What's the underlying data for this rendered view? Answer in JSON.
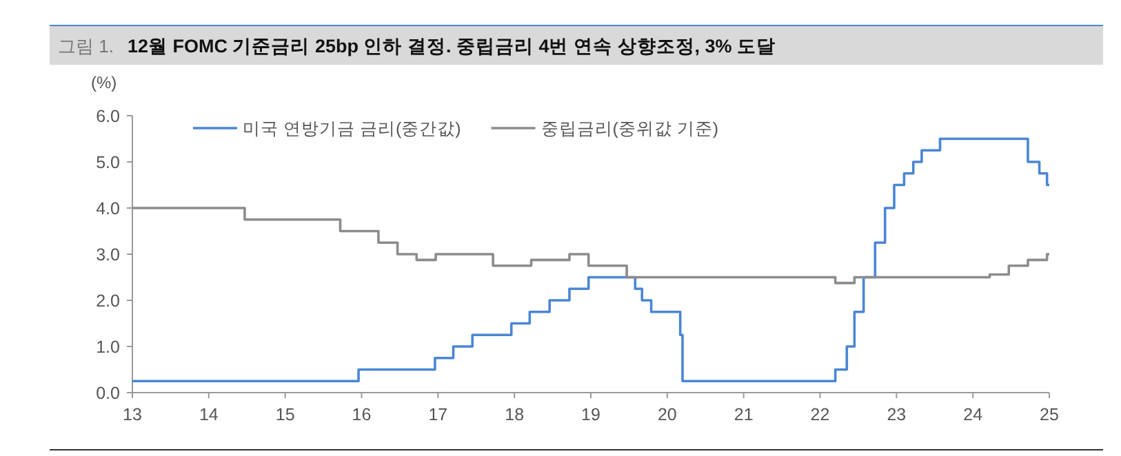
{
  "chart_data": {
    "type": "step",
    "title": "12월 FOMC 기준금리 25bp 인하 결정. 중립금리 4번 연속 상향조정, 3% 도달",
    "annotations": [
      "그림 1."
    ],
    "ylabel": "(%)",
    "series": [
      {
        "name": "미국 연방기금 금리(중간값)",
        "color": "#4a86d4",
        "x": [
          13.0,
          15.96,
          16.96,
          17.2,
          17.45,
          17.96,
          18.2,
          18.46,
          18.72,
          18.97,
          19.58,
          19.67,
          19.79,
          20.17,
          20.2,
          22.2,
          22.35,
          22.45,
          22.57,
          22.72,
          22.85,
          22.97,
          23.1,
          23.22,
          23.33,
          23.57,
          24.72,
          24.87,
          24.97,
          25.0
        ],
        "values": [
          0.25,
          0.5,
          0.75,
          1.0,
          1.25,
          1.5,
          1.75,
          2.0,
          2.25,
          2.5,
          2.25,
          2.0,
          1.75,
          1.25,
          0.25,
          0.5,
          1.0,
          1.75,
          2.5,
          3.25,
          4.0,
          4.5,
          4.75,
          5.0,
          5.25,
          5.5,
          5.0,
          4.75,
          4.5,
          4.5
        ]
      },
      {
        "name": "중립금리(중위값 기준)",
        "color": "#8c8c8c",
        "x": [
          13.0,
          14.47,
          15.72,
          16.22,
          16.47,
          16.72,
          16.97,
          17.72,
          18.22,
          18.72,
          18.97,
          19.47,
          22.2,
          22.45,
          24.22,
          24.47,
          24.72,
          24.97,
          25.0
        ],
        "values": [
          4.0,
          3.75,
          3.5,
          3.25,
          3.0,
          2.875,
          3.0,
          2.75,
          2.875,
          3.0,
          2.75,
          2.5,
          2.375,
          2.5,
          2.56,
          2.75,
          2.875,
          3.0,
          3.0
        ]
      }
    ],
    "xlim": [
      13,
      25
    ],
    "xticks": [
      13,
      14,
      15,
      16,
      17,
      18,
      19,
      20,
      21,
      22,
      23,
      24,
      25
    ],
    "ylim": [
      0,
      6
    ],
    "yticks": [
      {
        "value": 0,
        "label": "0.0"
      },
      {
        "value": 1,
        "label": "1.0"
      },
      {
        "value": 2,
        "label": "2.0"
      },
      {
        "value": 3,
        "label": "3.0"
      },
      {
        "value": 4,
        "label": "4.0"
      },
      {
        "value": 5,
        "label": "5.0"
      },
      {
        "value": 6,
        "label": "6.0"
      }
    ],
    "legend": "top",
    "grid": false
  }
}
